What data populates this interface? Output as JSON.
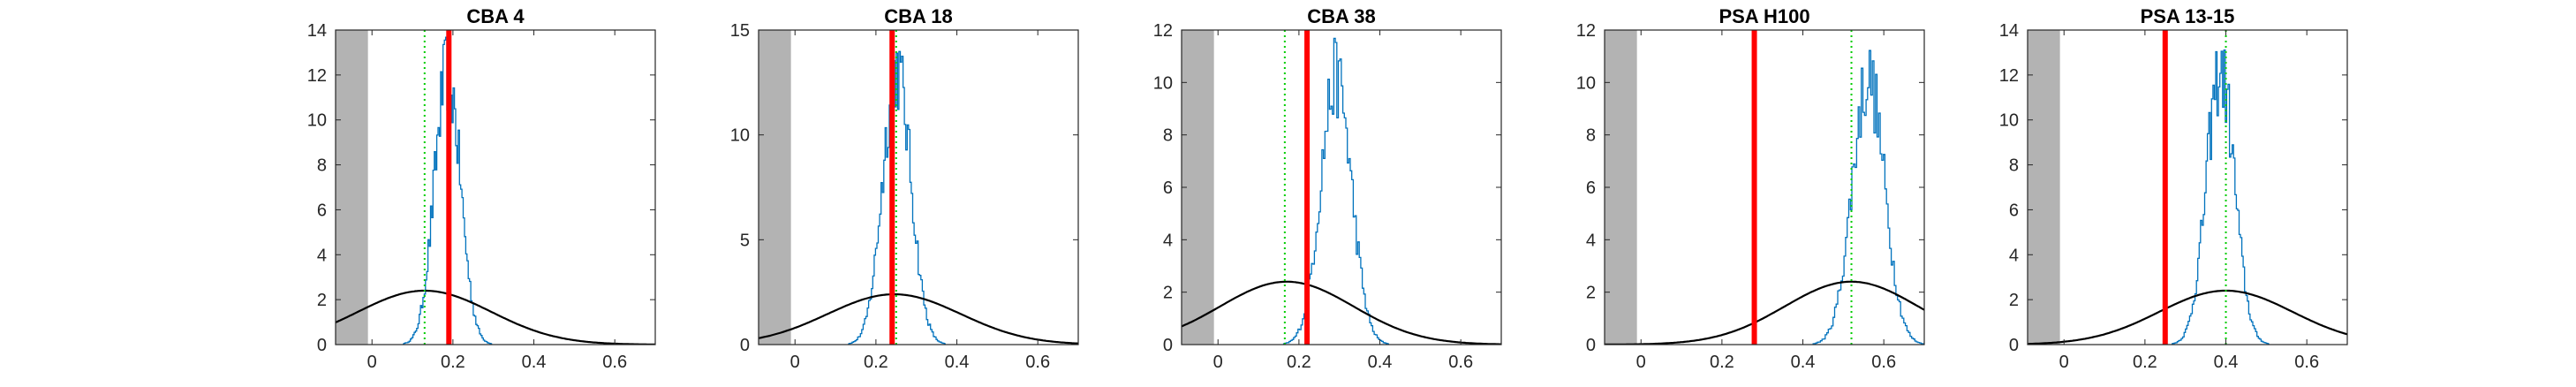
{
  "colors": {
    "histogram": "#0072BD",
    "normal_curve": "#000000",
    "estimate_line": "#FF0000",
    "reference_line": "#00CC00",
    "excluded_region": "#B3B3B3",
    "axes": "#262626"
  },
  "chart_data": [
    {
      "type": "area",
      "title": "CBA 4",
      "xlabel": "",
      "ylabel": "",
      "xlim": [
        -0.09,
        0.7
      ],
      "ylim": [
        0,
        14
      ],
      "xticks": [
        0,
        0.2,
        0.4,
        0.6
      ],
      "xtick_labels": [
        "0",
        "0.2",
        "0.4",
        "0.6"
      ],
      "yticks": [
        0,
        2,
        4,
        6,
        8,
        10,
        12,
        14
      ],
      "ytick_labels": [
        "0",
        "2",
        "4",
        "6",
        "8",
        "10",
        "12",
        "14"
      ],
      "shaded_region": [
        -0.09,
        -0.01
      ],
      "histogram": {
        "mean": 0.185,
        "sd": 0.032,
        "peak": 12.5
      },
      "normal_curve": {
        "mean": 0.13,
        "sd": 0.165,
        "peak": 2.4
      },
      "red_line_x": 0.19,
      "green_dotted_x": 0.13,
      "grid": false
    },
    {
      "type": "area",
      "title": "CBA 18",
      "xlabel": "",
      "ylabel": "",
      "xlim": [
        -0.09,
        0.7
      ],
      "ylim": [
        0,
        15
      ],
      "xticks": [
        0,
        0.2,
        0.4,
        0.6
      ],
      "xtick_labels": [
        "0",
        "0.2",
        "0.4",
        "0.6"
      ],
      "yticks": [
        0,
        5,
        10,
        15
      ],
      "ytick_labels": [
        "0",
        "5",
        "10",
        "15"
      ],
      "shaded_region": [
        -0.09,
        -0.01
      ],
      "histogram": {
        "mean": 0.25,
        "sd": 0.035,
        "peak": 13.5
      },
      "normal_curve": {
        "mean": 0.245,
        "sd": 0.165,
        "peak": 2.4
      },
      "red_line_x": 0.24,
      "green_dotted_x": 0.25,
      "grid": false
    },
    {
      "type": "area",
      "title": "CBA 38",
      "xlabel": "",
      "ylabel": "",
      "xlim": [
        -0.09,
        0.7
      ],
      "ylim": [
        0,
        12
      ],
      "xticks": [
        0,
        0.2,
        0.4,
        0.6
      ],
      "xtick_labels": [
        "0",
        "0.2",
        "0.4",
        "0.6"
      ],
      "yticks": [
        0,
        2,
        4,
        6,
        8,
        10,
        12
      ],
      "ytick_labels": [
        "0",
        "2",
        "4",
        "6",
        "8",
        "10",
        "12"
      ],
      "shaded_region": [
        -0.09,
        -0.01
      ],
      "histogram": {
        "mean": 0.29,
        "sd": 0.038,
        "peak": 10.5
      },
      "normal_curve": {
        "mean": 0.17,
        "sd": 0.165,
        "peak": 2.4
      },
      "red_line_x": 0.22,
      "green_dotted_x": 0.165,
      "grid": false
    },
    {
      "type": "area",
      "title": "PSA H100",
      "xlabel": "",
      "ylabel": "",
      "xlim": [
        -0.09,
        0.7
      ],
      "ylim": [
        0,
        12
      ],
      "xticks": [
        0,
        0.2,
        0.4,
        0.6
      ],
      "xtick_labels": [
        "0",
        "0.2",
        "0.4",
        "0.6"
      ],
      "yticks": [
        0,
        2,
        4,
        6,
        8,
        10,
        12
      ],
      "ytick_labels": [
        "0",
        "2",
        "4",
        "6",
        "8",
        "10",
        "12"
      ],
      "shaded_region": [
        -0.09,
        -0.01
      ],
      "histogram": {
        "mean": 0.56,
        "sd": 0.04,
        "peak": 10.5
      },
      "normal_curve": {
        "mean": 0.52,
        "sd": 0.165,
        "peak": 2.4
      },
      "red_line_x": 0.28,
      "green_dotted_x": 0.52,
      "grid": false
    },
    {
      "type": "area",
      "title": "PSA 13-15",
      "xlabel": "",
      "ylabel": "",
      "xlim": [
        -0.09,
        0.7
      ],
      "ylim": [
        0,
        14
      ],
      "xticks": [
        0,
        0.2,
        0.4,
        0.6
      ],
      "xtick_labels": [
        "0",
        "0.2",
        "0.4",
        "0.6"
      ],
      "yticks": [
        0,
        2,
        4,
        6,
        8,
        10,
        12,
        14
      ],
      "ytick_labels": [
        "0",
        "2",
        "4",
        "6",
        "8",
        "10",
        "12",
        "14"
      ],
      "shaded_region": [
        -0.09,
        -0.01
      ],
      "histogram": {
        "mean": 0.385,
        "sd": 0.035,
        "peak": 12.5
      },
      "normal_curve": {
        "mean": 0.4,
        "sd": 0.165,
        "peak": 2.4
      },
      "red_line_x": 0.25,
      "green_dotted_x": 0.4,
      "grid": false
    }
  ]
}
